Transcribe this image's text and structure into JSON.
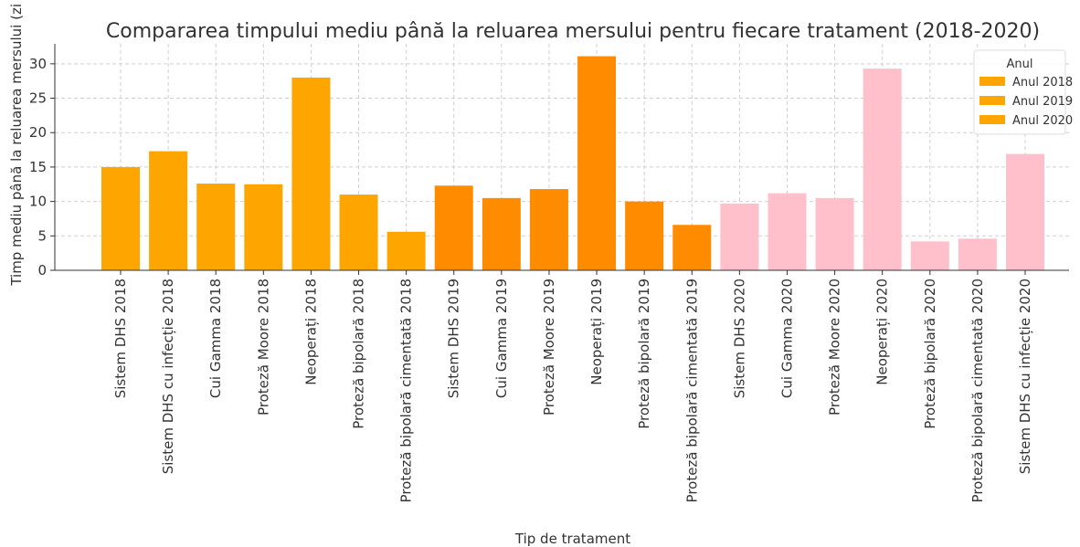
{
  "chart_data": {
    "type": "bar",
    "title": "Compararea timpului mediu până la reluarea mersului pentru fiecare tratament (2018-2020)",
    "x_label": "Tip de tratament",
    "y_label": "Timp mediu până la reluarea mersului (zi",
    "categories": [
      "Sistem DHS 2018",
      "Sistem DHS cu infecție 2018",
      "Cui Gamma 2018",
      "Proteză Moore 2018",
      "Neoperați 2018",
      "Proteză bipolară 2018",
      "Proteză bipolară cimentată 2018",
      "Sistem DHS 2019",
      "Cui Gamma 2019",
      "Proteză Moore 2019",
      "Neoperați 2019",
      "Proteză bipolară 2019",
      "Proteză bipolară cimentată 2019",
      "Sistem DHS 2020",
      "Cui Gamma 2020",
      "Proteză Moore 2020",
      "Neoperați 2020",
      "Proteză bipolară 2020",
      "Proteză bipolară cimentată 2020",
      "Sistem DHS cu infecție 2020"
    ],
    "values": [
      15.0,
      17.3,
      12.6,
      12.5,
      28.0,
      11.0,
      5.6,
      12.3,
      10.5,
      11.8,
      31.1,
      10.0,
      6.6,
      9.7,
      11.2,
      10.5,
      29.3,
      4.2,
      4.6,
      16.9
    ],
    "colors": [
      "#ffa500",
      "#ffa500",
      "#ffa500",
      "#ffa500",
      "#ffa500",
      "#ffa500",
      "#ffa500",
      "#ff8c00",
      "#ff8c00",
      "#ff8c00",
      "#ff8c00",
      "#ff8c00",
      "#ff8c00",
      "#ffc0cb",
      "#ffc0cb",
      "#ffc0cb",
      "#ffc0cb",
      "#ffc0cb",
      "#ffc0cb",
      "#ffc0cb"
    ],
    "ylim": [
      0,
      32.9
    ],
    "yticks": [
      0,
      5,
      10,
      15,
      20,
      25,
      30
    ],
    "grid": true,
    "legend": {
      "title": "Anul",
      "position": "upper right",
      "entries": [
        "Anul 2018",
        "Anul 2019",
        "Anul 2020"
      ],
      "color": "#ffa500"
    }
  }
}
